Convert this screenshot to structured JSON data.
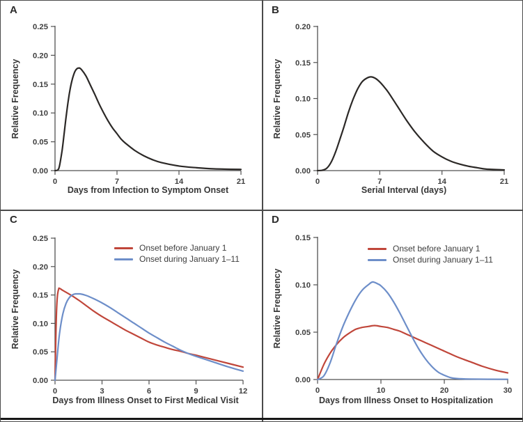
{
  "figure": {
    "background": "#ffffff",
    "border_color": "#4a4a4a",
    "divider_color": "#4a4a4a",
    "bottom_rule_color": "#161616",
    "axis_color": "#505050",
    "text_color": "#3d3d3d"
  },
  "chart_data": [
    {
      "panel": "A",
      "type": "line",
      "xlabel": "Days from Infection to Symptom Onset",
      "ylabel": "Relative Frequency",
      "xlim": [
        0,
        21
      ],
      "ylim": [
        0,
        0.25
      ],
      "xticks": [
        0,
        7,
        14,
        21
      ],
      "xtick_labels": [
        "0",
        "7",
        "14",
        "21"
      ],
      "yticks": [
        0,
        0.05,
        0.1,
        0.15,
        0.2,
        0.25
      ],
      "ytick_labels": [
        "0.00",
        "0.05",
        "0.10",
        "0.15",
        "0.20",
        "0.25"
      ],
      "grid": false,
      "legend": null,
      "series": [
        {
          "name": null,
          "color": "#2b2826",
          "width": 2.2,
          "x": [
            0,
            0.3,
            0.5,
            0.8,
            1,
            1.25,
            1.5,
            1.75,
            2,
            2.25,
            2.5,
            2.75,
            3,
            3.5,
            4,
            4.5,
            5,
            5.5,
            6,
            6.5,
            7,
            7.5,
            8,
            9,
            10,
            11,
            12,
            14,
            16,
            18,
            21
          ],
          "y": [
            0,
            0.001,
            0.008,
            0.035,
            0.06,
            0.093,
            0.122,
            0.145,
            0.161,
            0.172,
            0.177,
            0.178,
            0.175,
            0.164,
            0.148,
            0.132,
            0.115,
            0.1,
            0.086,
            0.074,
            0.064,
            0.054,
            0.047,
            0.035,
            0.026,
            0.019,
            0.014,
            0.008,
            0.005,
            0.003,
            0.002
          ]
        }
      ]
    },
    {
      "panel": "B",
      "type": "line",
      "xlabel": "Serial Interval (days)",
      "ylabel": "Relative Frequency",
      "xlim": [
        0,
        21
      ],
      "ylim": [
        0,
        0.2
      ],
      "xticks": [
        0,
        7,
        14,
        21
      ],
      "xtick_labels": [
        "0",
        "7",
        "14",
        "21"
      ],
      "yticks": [
        0,
        0.05,
        0.1,
        0.15,
        0.2
      ],
      "ytick_labels": [
        "0.00",
        "0.05",
        "0.10",
        "0.15",
        "0.20"
      ],
      "grid": false,
      "legend": null,
      "series": [
        {
          "name": null,
          "color": "#2b2826",
          "width": 2.2,
          "x": [
            0,
            0.5,
            1,
            1.5,
            2,
            2.5,
            3,
            3.5,
            4,
            4.5,
            5,
            5.5,
            6,
            6.5,
            7,
            7.5,
            8,
            9,
            10,
            11,
            12,
            13,
            14,
            15,
            16,
            17,
            18,
            19,
            21
          ],
          "y": [
            0,
            0.0004,
            0.003,
            0.011,
            0.025,
            0.043,
            0.062,
            0.082,
            0.099,
            0.113,
            0.123,
            0.128,
            0.13,
            0.128,
            0.123,
            0.116,
            0.108,
            0.089,
            0.07,
            0.053,
            0.039,
            0.027,
            0.019,
            0.013,
            0.009,
            0.006,
            0.004,
            0.002,
            0.001
          ]
        }
      ]
    },
    {
      "panel": "C",
      "type": "line",
      "xlabel": "Days from Illness Onset to First Medical Visit",
      "ylabel": "Relative Frequency",
      "xlim": [
        0,
        12
      ],
      "ylim": [
        0,
        0.25
      ],
      "xticks": [
        0,
        3,
        6,
        9,
        12
      ],
      "xtick_labels": [
        "0",
        "3",
        "6",
        "9",
        "12"
      ],
      "yticks": [
        0,
        0.05,
        0.1,
        0.15,
        0.2,
        0.25
      ],
      "ytick_labels": [
        "0.00",
        "0.05",
        "0.10",
        "0.15",
        "0.20",
        "0.25"
      ],
      "grid": false,
      "legend": "upper-right",
      "series": [
        {
          "name": "Onset before January 1",
          "color": "#c0463a",
          "width": 2.2,
          "x": [
            0,
            0.1,
            0.25,
            0.5,
            1,
            1.5,
            2,
            2.5,
            3,
            3.5,
            4,
            4.5,
            5,
            5.5,
            6,
            6.5,
            7,
            7.5,
            8,
            8.5,
            9,
            10,
            11,
            12
          ],
          "y": [
            0,
            0.125,
            0.162,
            0.158,
            0.15,
            0.141,
            0.131,
            0.121,
            0.112,
            0.104,
            0.096,
            0.088,
            0.081,
            0.074,
            0.067,
            0.062,
            0.058,
            0.054,
            0.051,
            0.047,
            0.044,
            0.037,
            0.03,
            0.023
          ]
        },
        {
          "name": "Onset during January 1–11",
          "color": "#6d8ec9",
          "width": 2.2,
          "x": [
            0,
            0.15,
            0.3,
            0.5,
            0.7,
            0.9,
            1.1,
            1.3,
            1.6,
            2,
            2.5,
            3,
            3.5,
            4,
            4.5,
            5,
            5.5,
            6,
            6.5,
            7,
            7.5,
            8,
            8.5,
            9,
            10,
            11,
            12
          ],
          "y": [
            0,
            0.045,
            0.085,
            0.117,
            0.135,
            0.145,
            0.15,
            0.152,
            0.152,
            0.149,
            0.143,
            0.136,
            0.128,
            0.119,
            0.11,
            0.101,
            0.092,
            0.083,
            0.075,
            0.067,
            0.06,
            0.053,
            0.047,
            0.042,
            0.033,
            0.024,
            0.016
          ]
        }
      ]
    },
    {
      "panel": "D",
      "type": "line",
      "xlabel": "Days from Illness Onset to Hospitalization",
      "ylabel": "Relative Frequency",
      "xlim": [
        0,
        30
      ],
      "ylim": [
        0,
        0.15
      ],
      "xticks": [
        0,
        10,
        20,
        30
      ],
      "xtick_labels": [
        "0",
        "10",
        "20",
        "30"
      ],
      "yticks": [
        0,
        0.05,
        0.1,
        0.15
      ],
      "ytick_labels": [
        "0.00",
        "0.05",
        "0.10",
        "0.15"
      ],
      "grid": false,
      "legend": "upper-right",
      "series": [
        {
          "name": "Onset before January 1",
          "color": "#c0463a",
          "width": 2.2,
          "x": [
            0,
            1,
            2,
            3,
            4,
            5,
            6,
            7,
            8,
            9,
            10,
            11,
            12,
            13,
            14,
            15,
            16,
            17,
            18,
            19,
            20,
            22,
            24,
            26,
            28,
            30
          ],
          "y": [
            0,
            0.016,
            0.028,
            0.037,
            0.044,
            0.049,
            0.053,
            0.055,
            0.056,
            0.057,
            0.056,
            0.055,
            0.053,
            0.051,
            0.048,
            0.045,
            0.042,
            0.039,
            0.036,
            0.033,
            0.03,
            0.024,
            0.019,
            0.014,
            0.01,
            0.007
          ]
        },
        {
          "name": "Onset during January 1–11",
          "color": "#6d8ec9",
          "width": 2.2,
          "x": [
            0,
            1,
            2,
            3,
            4,
            5,
            6,
            7,
            8,
            8.7,
            9.5,
            10,
            11,
            12,
            13,
            14,
            15,
            16,
            17,
            18,
            19,
            20,
            21,
            22,
            24,
            30
          ],
          "y": [
            0,
            0.004,
            0.018,
            0.038,
            0.056,
            0.071,
            0.084,
            0.094,
            0.1,
            0.103,
            0.101,
            0.099,
            0.092,
            0.082,
            0.07,
            0.057,
            0.044,
            0.032,
            0.022,
            0.014,
            0.008,
            0.0045,
            0.002,
            0.001,
            0.0005,
            0.0002
          ]
        }
      ]
    }
  ]
}
